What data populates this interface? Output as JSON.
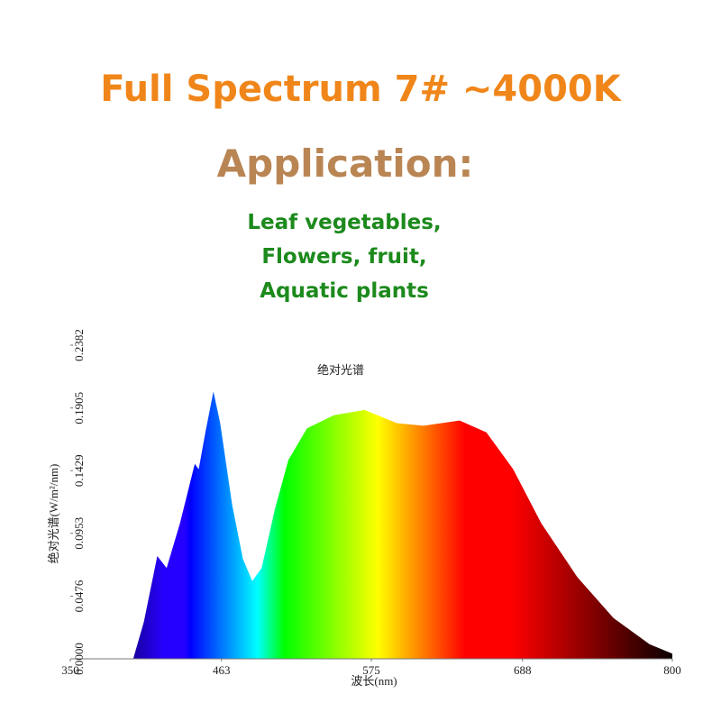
{
  "header": {
    "title": "Full Spectrum 7# ~4000K",
    "subtitle": "Application:",
    "lines": [
      "Leaf vegetables,",
      "Flowers, fruit,",
      "Aquatic plants"
    ]
  },
  "chart_data": {
    "type": "area",
    "title": "绝对光谱",
    "ylabel": "绝对光谱(W/m²/nm)",
    "xlabel": "波长(nm)",
    "x": [
      397,
      405,
      415,
      422,
      432,
      443,
      446,
      451,
      457,
      462,
      471,
      479,
      486,
      493,
      503,
      513,
      527,
      547,
      570,
      594,
      614,
      641,
      661,
      681,
      702,
      729,
      756,
      783,
      800
    ],
    "values": [
      0,
      0.028,
      0.078,
      0.069,
      0.103,
      0.148,
      0.144,
      0.172,
      0.203,
      0.179,
      0.117,
      0.076,
      0.059,
      0.069,
      0.114,
      0.151,
      0.175,
      0.185,
      0.189,
      0.179,
      0.177,
      0.181,
      0.172,
      0.144,
      0.103,
      0.062,
      0.031,
      0.011,
      0.004
    ],
    "xlim": [
      350,
      800
    ],
    "xticks": [
      350,
      463,
      575,
      688,
      800
    ],
    "ylim": [
      0,
      0.2382
    ],
    "yticks": [
      {
        "value": 0,
        "label": "0.0000"
      },
      0.0476,
      0.0953,
      0.1429,
      0.1905,
      0.2382
    ]
  }
}
